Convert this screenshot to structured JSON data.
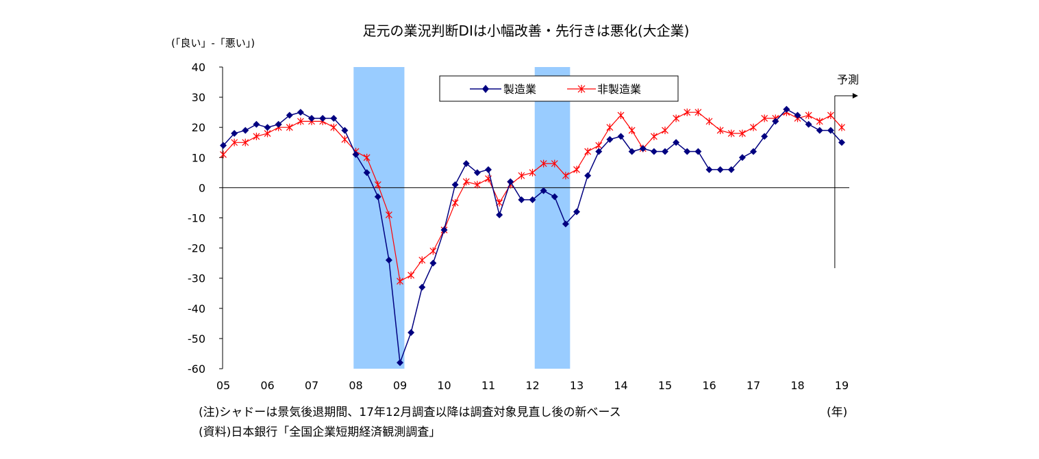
{
  "chart_data": {
    "type": "line",
    "title": "足元の業況判断DIは小幅改善・先行きは悪化(大企業)",
    "ylabel": "(「良い」-「悪い」)",
    "xlabel": "(年)",
    "ylim": [
      -60,
      40
    ],
    "yticks": [
      "40",
      "30",
      "20",
      "10",
      "0",
      "-10",
      "-20",
      "-30",
      "-40",
      "-50",
      "-60"
    ],
    "xticks": [
      "05",
      "06",
      "07",
      "08",
      "09",
      "10",
      "11",
      "12",
      "13",
      "14",
      "15",
      "16",
      "17",
      "18",
      "19"
    ],
    "x_start_year": 2005,
    "points_per_year": 4,
    "shaded_periods": [
      {
        "start": 2007.95,
        "end": 2009.1
      },
      {
        "start": 2012.05,
        "end": 2012.85
      }
    ],
    "forecast_label": "予測",
    "legend_position": "top-center",
    "grid": false,
    "series": [
      {
        "name": "製造業",
        "color": "#000080",
        "marker": "diamond",
        "values": [
          14,
          18,
          19,
          21,
          20,
          21,
          24,
          25,
          23,
          23,
          23,
          19,
          11,
          5,
          -3,
          -24,
          -58,
          -48,
          -33,
          -25,
          -14,
          1,
          8,
          5,
          6,
          -9,
          2,
          -4,
          -4,
          -1,
          -3,
          -12,
          -8,
          4,
          12,
          16,
          17,
          12,
          13,
          12,
          12,
          15,
          12,
          12,
          6,
          6,
          6,
          10,
          12,
          17,
          22,
          26,
          24,
          21,
          19,
          19,
          15
        ]
      },
      {
        "name": "非製造業",
        "color": "#ff0000",
        "marker": "asterisk",
        "values": [
          11,
          15,
          15,
          17,
          18,
          20,
          20,
          22,
          22,
          22,
          20,
          16,
          12,
          10,
          1,
          -9,
          -31,
          -29,
          -24,
          -21,
          -14,
          -5,
          2,
          1,
          3,
          -5,
          1,
          4,
          5,
          8,
          8,
          4,
          6,
          12,
          14,
          20,
          24,
          19,
          13,
          17,
          19,
          23,
          25,
          25,
          22,
          19,
          18,
          18,
          20,
          23,
          23,
          25,
          23,
          24,
          22,
          24,
          20
        ]
      }
    ]
  },
  "notes": [
    "(注)シャドーは景気後退期間、17年12月調査以降は調査対象見直し後の新ベース",
    "(資料)日本銀行「全国企業短期経済観測調査」"
  ]
}
